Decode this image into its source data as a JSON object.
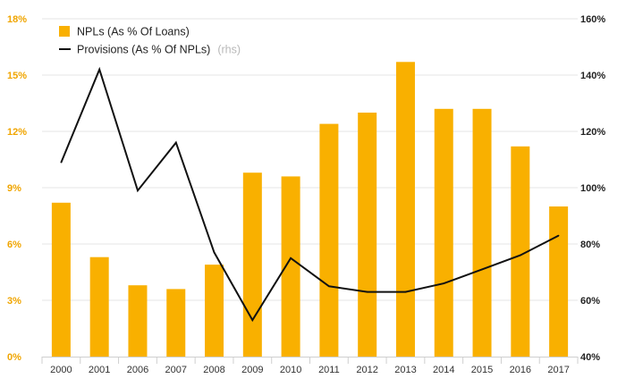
{
  "chart_data": {
    "type": "bar",
    "categories": [
      "2000",
      "2001",
      "2006",
      "2007",
      "2008",
      "2009",
      "2010",
      "2011",
      "2012",
      "2013",
      "2014",
      "2015",
      "2016",
      "2017"
    ],
    "series": [
      {
        "name": "NPLs (As % Of Loans)",
        "type": "bar",
        "axis": "left",
        "color": "#F9B000",
        "values": [
          8.2,
          5.3,
          3.8,
          3.6,
          4.9,
          9.8,
          9.6,
          12.4,
          13.0,
          15.7,
          13.2,
          13.2,
          11.2,
          8.0
        ]
      },
      {
        "name": "Provisions (As % Of NPLs)",
        "note": "(rhs)",
        "type": "line",
        "axis": "right",
        "color": "#111111",
        "values": [
          109,
          142,
          99,
          116,
          77,
          53,
          75,
          65,
          63,
          63,
          66,
          71,
          76,
          83
        ]
      }
    ],
    "y_left": {
      "ylim": [
        0,
        18
      ],
      "ticks": [
        0,
        3,
        6,
        9,
        12,
        15,
        18
      ],
      "tick_labels": [
        "0%",
        "3%",
        "6%",
        "9%",
        "12%",
        "15%",
        "18%"
      ],
      "color": "#F0A500"
    },
    "y_right": {
      "ylim": [
        40,
        160
      ],
      "ticks": [
        40,
        60,
        80,
        100,
        120,
        140,
        160
      ],
      "tick_labels": [
        "40%",
        "60%",
        "80%",
        "100%",
        "120%",
        "140%",
        "160%"
      ]
    },
    "grid": true,
    "legend_position": "top-left"
  }
}
